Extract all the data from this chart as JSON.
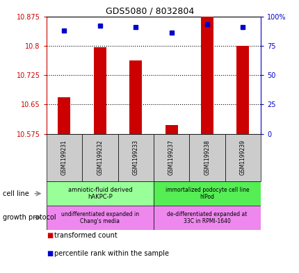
{
  "title": "GDS5080 / 8032804",
  "samples": [
    "GSM1199231",
    "GSM1199232",
    "GSM1199233",
    "GSM1199237",
    "GSM1199238",
    "GSM1199239"
  ],
  "bar_values": [
    10.668,
    10.797,
    10.762,
    10.597,
    10.875,
    10.8
  ],
  "percentile_values": [
    88,
    92,
    91,
    86,
    93,
    91
  ],
  "ymin": 10.575,
  "ymax": 10.875,
  "yticks": [
    10.575,
    10.65,
    10.725,
    10.8,
    10.875
  ],
  "ytick_labels": [
    "10.575",
    "10.65",
    "10.725",
    "10.8",
    "10.875"
  ],
  "y2min": 0,
  "y2max": 100,
  "y2ticks": [
    0,
    25,
    50,
    75,
    100
  ],
  "y2tick_labels": [
    "0",
    "25",
    "50",
    "75",
    "100%"
  ],
  "bar_color": "#cc0000",
  "dot_color": "#0000cc",
  "cell_line_1": "amniotic-fluid derived\nhAKPC-P",
  "cell_line_2": "immortalized podocyte cell line\nhIPod",
  "growth_1": "undifferentiated expanded in\nChang's media",
  "growth_2": "de-differentiated expanded at\n33C in RPMI-1640",
  "cell_line_color_1": "#99ff99",
  "cell_line_color_2": "#55ee55",
  "growth_color_1": "#ee88ee",
  "growth_color_2": "#ee88ee",
  "sample_bg_color": "#cccccc",
  "legend_bar_color": "#cc0000",
  "legend_dot_color": "#0000cc"
}
